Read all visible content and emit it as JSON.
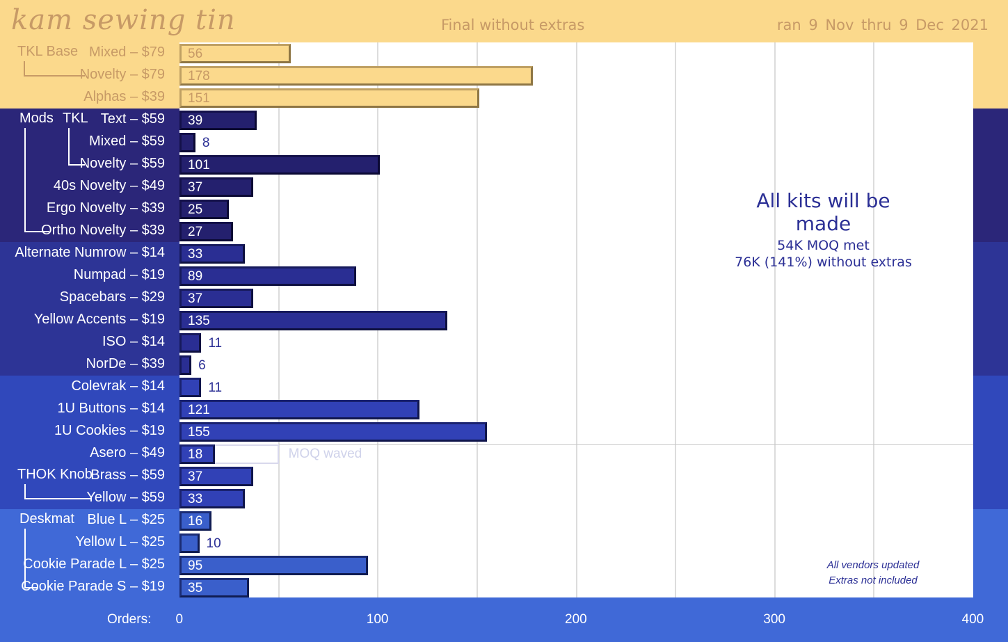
{
  "header": {
    "title": "kam sewing tin",
    "subtitle": "Final without extras",
    "date_range": "ran  9 Nov  thru  9 Dec  2021"
  },
  "colors": {
    "tkl_band": "#fbd98c",
    "mods_band": "#2b2679",
    "kits_band": "#2d3496",
    "extras_band": "#3048bb",
    "desk_band": "#4069d7",
    "accent_text": "#2b2f95",
    "tan_text": "#c79a66"
  },
  "chart_data": {
    "type": "bar",
    "orientation": "horizontal",
    "title": "Final without extras",
    "xlabel": "Orders:",
    "xlim": [
      0,
      400
    ],
    "xticks": [
      "0",
      "100",
      "200",
      "300",
      "400"
    ],
    "bars": [
      {
        "label": "Mixed – $79",
        "value": 56,
        "group": "tkl"
      },
      {
        "label": "Novelty – $79",
        "value": 178,
        "group": "tkl"
      },
      {
        "label": "Alphas – $39",
        "value": 151,
        "group": "tkl"
      },
      {
        "label": "Text – $59",
        "value": 39,
        "group": "mods"
      },
      {
        "label": "Mixed – $59",
        "value": 8,
        "group": "mods"
      },
      {
        "label": "Novelty – $59",
        "value": 101,
        "group": "mods"
      },
      {
        "label": "40s Novelty – $49",
        "value": 37,
        "group": "mods"
      },
      {
        "label": "Ergo Novelty – $39",
        "value": 25,
        "group": "mods"
      },
      {
        "label": "Ortho Novelty – $39",
        "value": 27,
        "group": "mods"
      },
      {
        "label": "Alternate Numrow – $14",
        "value": 33,
        "group": "kits"
      },
      {
        "label": "Numpad – $19",
        "value": 89,
        "group": "kits"
      },
      {
        "label": "Spacebars – $29",
        "value": 37,
        "group": "kits"
      },
      {
        "label": "Yellow Accents – $19",
        "value": 135,
        "group": "kits"
      },
      {
        "label": "ISO – $14",
        "value": 11,
        "group": "kits"
      },
      {
        "label": "NorDe – $39",
        "value": 6,
        "group": "kits"
      },
      {
        "label": "Colevrak – $14",
        "value": 11,
        "group": "extra"
      },
      {
        "label": "1U Buttons – $14",
        "value": 121,
        "group": "extra"
      },
      {
        "label": "1U Cookies – $19",
        "value": 155,
        "group": "extra"
      },
      {
        "label": "Asero – $49",
        "value": 18,
        "group": "extra",
        "moq": 50,
        "moq_label": "MOQ waved"
      },
      {
        "label": "Brass – $59",
        "value": 37,
        "group": "extra"
      },
      {
        "label": "Yellow – $59",
        "value": 33,
        "group": "extra"
      },
      {
        "label": "Blue L – $25",
        "value": 16,
        "group": "desk"
      },
      {
        "label": "Yellow L – $25",
        "value": 10,
        "group": "desk"
      },
      {
        "label": "Cookie Parade L – $25",
        "value": 95,
        "group": "desk"
      },
      {
        "label": "Cookie Parade S – $19",
        "value": 35,
        "group": "desk"
      }
    ],
    "group_labels": {
      "tkl_base": "TKL Base",
      "mods": "Mods",
      "mods_tkl": "TKL",
      "thok": "THOK Knob",
      "deskmat": "Deskmat"
    },
    "annotation": {
      "headline": "All kits will be made",
      "line1": "54K MOQ met",
      "line2": "76K (141%) without extras"
    },
    "notes": [
      "All vendors updated",
      "Extras not included"
    ]
  }
}
